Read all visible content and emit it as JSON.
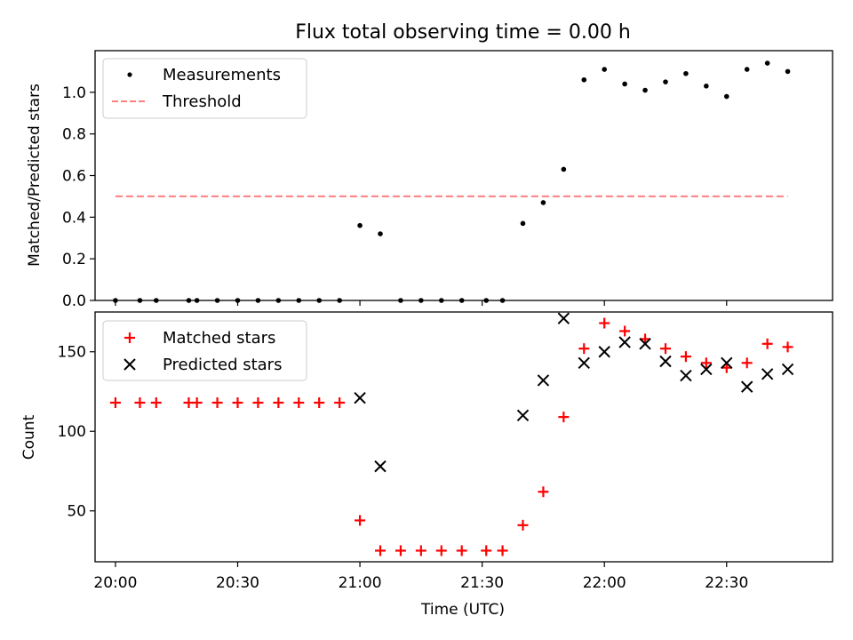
{
  "chart_data": [
    {
      "type": "scatter",
      "title": "Flux total observing time = 0.00 h",
      "xlabel": "",
      "ylabel": "Matched/Predicted stars",
      "xlim": [
        "19:55",
        "22:56"
      ],
      "ylim": [
        0.0,
        1.2
      ],
      "yticks": [
        0.0,
        0.2,
        0.4,
        0.6,
        0.8,
        1.0
      ],
      "yticklabels": [
        "0.0",
        "0.2",
        "0.4",
        "0.6",
        "0.8",
        "1.0"
      ],
      "legend_position": "top-left",
      "series": [
        {
          "name": "Measurements",
          "kind": "points",
          "color": "#000000",
          "x": [
            "20:00",
            "20:06",
            "20:10",
            "20:18",
            "20:20",
            "20:25",
            "20:30",
            "20:35",
            "20:40",
            "20:45",
            "20:50",
            "20:55",
            "21:00",
            "21:05",
            "21:10",
            "21:15",
            "21:20",
            "21:25",
            "21:31",
            "21:35",
            "21:40",
            "21:45",
            "21:50",
            "21:55",
            "22:00",
            "22:05",
            "22:10",
            "22:15",
            "22:20",
            "22:25",
            "22:30",
            "22:35",
            "22:40",
            "22:45"
          ],
          "y": [
            0.0,
            0.0,
            0.0,
            0.0,
            0.0,
            0.0,
            0.0,
            0.0,
            0.0,
            0.0,
            0.0,
            0.0,
            0.36,
            0.32,
            0.0,
            0.0,
            0.0,
            0.0,
            0.0,
            0.0,
            0.37,
            0.47,
            0.63,
            1.06,
            1.11,
            1.04,
            1.01,
            1.05,
            1.09,
            1.03,
            0.98,
            1.11,
            1.14,
            1.1
          ]
        },
        {
          "name": "Threshold",
          "kind": "dashed-line",
          "color": "#ff7f7f",
          "x": [
            "20:00",
            "22:45"
          ],
          "y": [
            0.5,
            0.5
          ]
        }
      ]
    },
    {
      "type": "scatter",
      "title": "",
      "xlabel": "Time (UTC)",
      "ylabel": "Count",
      "xlim": [
        "19:55",
        "22:56"
      ],
      "ylim": [
        18,
        175
      ],
      "yticks": [
        50,
        100,
        150
      ],
      "yticklabels": [
        "50",
        "100",
        "150"
      ],
      "xticklabels": [
        "20:00",
        "20:30",
        "21:00",
        "21:30",
        "22:00",
        "22:30"
      ],
      "xticks": [
        "20:00",
        "20:30",
        "21:00",
        "21:30",
        "22:00",
        "22:30"
      ],
      "legend_position": "top-left",
      "series": [
        {
          "name": "Matched stars",
          "marker": "plus",
          "color": "#ff0000",
          "x": [
            "20:00",
            "20:06",
            "20:10",
            "20:18",
            "20:20",
            "20:25",
            "20:30",
            "20:35",
            "20:40",
            "20:45",
            "20:50",
            "20:55",
            "21:00",
            "21:05",
            "21:10",
            "21:15",
            "21:20",
            "21:25",
            "21:31",
            "21:35",
            "21:40",
            "21:45",
            "21:50",
            "21:55",
            "22:00",
            "22:05",
            "22:10",
            "22:15",
            "22:20",
            "22:25",
            "22:30",
            "22:35",
            "22:40",
            "22:45"
          ],
          "y": [
            118,
            118,
            118,
            118,
            118,
            118,
            118,
            118,
            118,
            118,
            118,
            118,
            44,
            25,
            25,
            25,
            25,
            25,
            25,
            25,
            41,
            62,
            109,
            152,
            168,
            163,
            158,
            152,
            147,
            143,
            140,
            143,
            155,
            153
          ]
        },
        {
          "name": "Predicted stars",
          "marker": "x",
          "color": "#000000",
          "x": [
            "21:00",
            "21:05",
            "21:40",
            "21:45",
            "21:50",
            "21:55",
            "22:00",
            "22:05",
            "22:10",
            "22:15",
            "22:20",
            "22:25",
            "22:30",
            "22:35",
            "22:40",
            "22:45"
          ],
          "y": [
            121,
            78,
            110,
            132,
            171,
            143,
            150,
            156,
            155,
            144,
            135,
            139,
            143,
            128,
            136,
            139
          ]
        }
      ]
    }
  ]
}
